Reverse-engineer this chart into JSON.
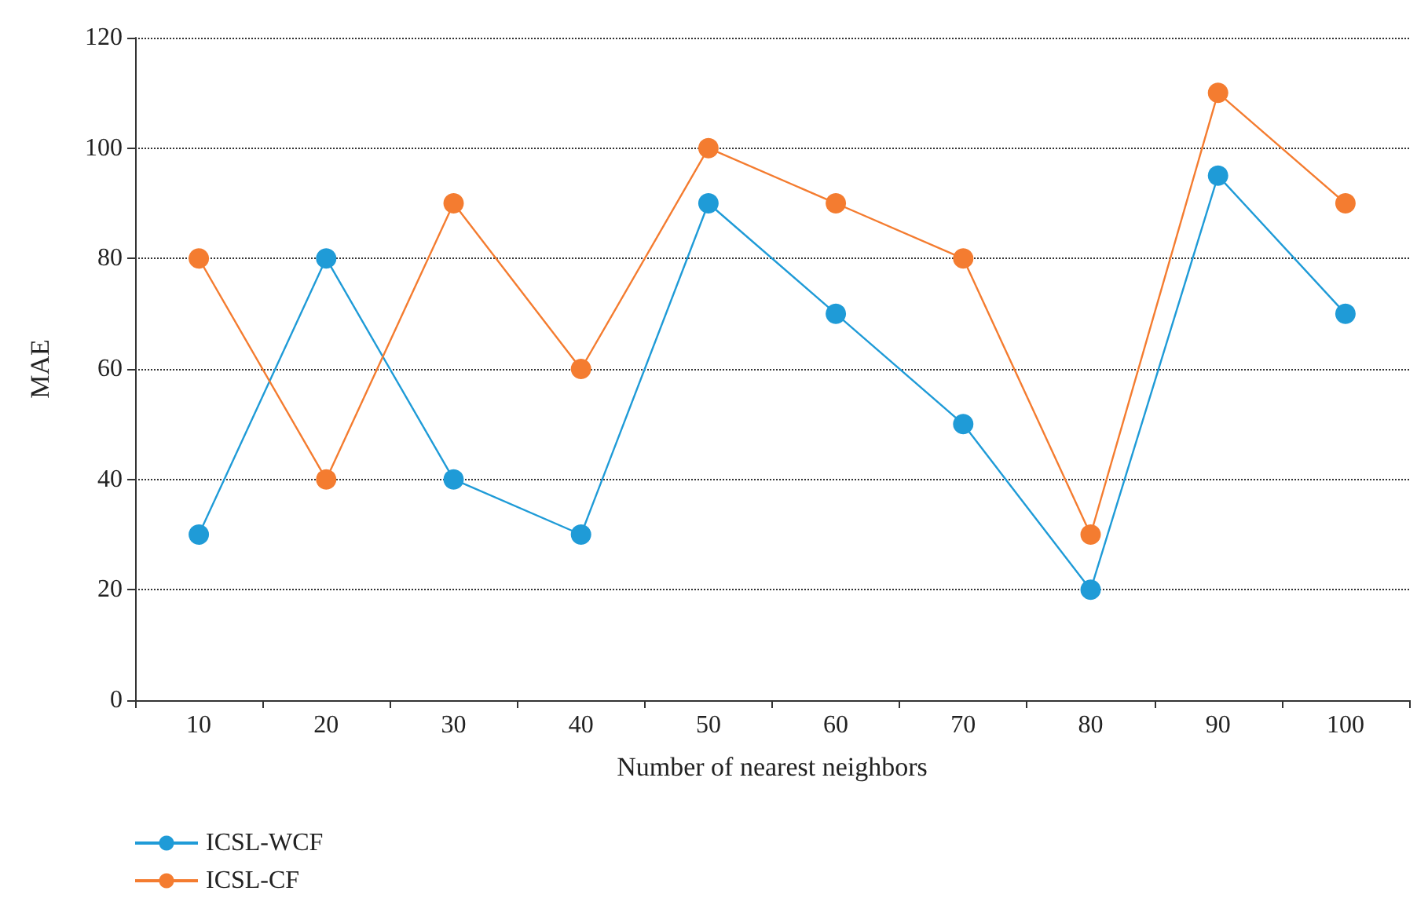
{
  "chart_data": {
    "type": "line",
    "xlabel": "Number of nearest neighbors",
    "ylabel": "MAE",
    "categories": [
      "10",
      "20",
      "30",
      "40",
      "50",
      "60",
      "70",
      "80",
      "90",
      "100"
    ],
    "series": [
      {
        "name": "ICSL-WCF",
        "color": "#1f9bd7",
        "values": [
          30,
          80,
          40,
          30,
          90,
          70,
          50,
          20,
          95,
          70
        ]
      },
      {
        "name": "ICSL-CF",
        "color": "#f47c30",
        "values": [
          80,
          40,
          90,
          60,
          100,
          90,
          80,
          30,
          110,
          90
        ]
      }
    ],
    "ylim": [
      0,
      120
    ],
    "yticks": [
      0,
      20,
      40,
      60,
      80,
      100,
      120
    ],
    "grid": "y",
    "legend": "bottom left",
    "marker": "circle",
    "line_style": "solid"
  }
}
